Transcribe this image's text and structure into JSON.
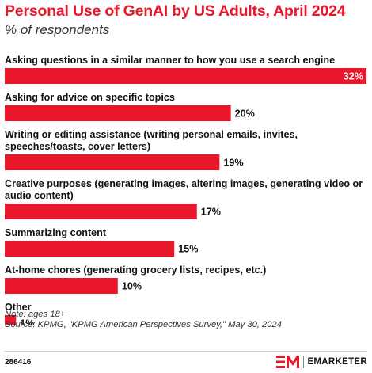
{
  "chart_data": {
    "type": "bar",
    "orientation": "horizontal",
    "title": "Personal Use of GenAI by US Adults, April 2024",
    "subtitle": "% of respondents",
    "categories": [
      [
        "Asking questions in a similar manner to how you use a search engine"
      ],
      [
        "Asking for advice on specific topics"
      ],
      [
        "Writing or editing assistance (writing personal emails, invites,",
        "speeches/toasts, cover letters)"
      ],
      [
        "Creative purposes (generating images, altering images, generating video or",
        "audio content)"
      ],
      [
        "Summarizing content"
      ],
      [
        "At-home chores (generating grocery lists, recipes, etc.)"
      ],
      [
        "Other"
      ]
    ],
    "values": [
      32,
      20,
      19,
      17,
      15,
      10,
      1
    ],
    "value_labels": [
      "32%",
      "20%",
      "19%",
      "17%",
      "15%",
      "10%",
      "1%"
    ],
    "xlim": [
      0,
      32
    ],
    "grid": false,
    "bar_color": "#e8172b"
  },
  "notes": {
    "note": "Note: ages 18+",
    "source": "Source: KPMG, \"KPMG American Perspectives Survey,\" May 30, 2024"
  },
  "footer": {
    "chart_id": "286416",
    "brand_text": "EMARKETER",
    "brand_icon": "em-logo-icon",
    "brand_color": "#e8172b"
  }
}
